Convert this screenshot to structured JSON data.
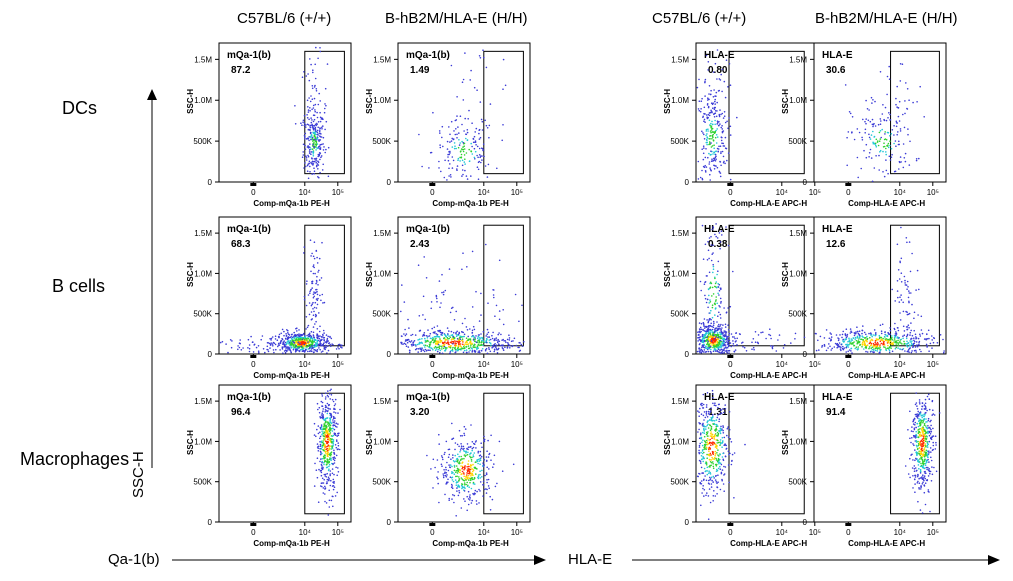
{
  "column_headers": [
    "C57BL/6 (+/+)",
    "B-hB2M/HLA-E (H/H)",
    "C57BL/6 (+/+)",
    "B-hB2M/HLA-E (H/H)"
  ],
  "row_labels": [
    "DCs",
    "B cells",
    "Macrophages"
  ],
  "axis_titles": {
    "y": "SSC-H",
    "x_left": "Qa-1(b)",
    "x_right": "HLA-E"
  },
  "colors": {
    "plot_border": "#000000",
    "density_low": "#3b3bd6",
    "density_mid": "#2fd12f",
    "density_high": "#ff2a00"
  },
  "chart_data": [
    {
      "type": "scatter",
      "row": "DCs",
      "column": "C57BL/6 (+/+)",
      "gate_label": "mQa-1(b)",
      "gate_value": "87.2",
      "xlabel": "Comp-mQa-1b PE-H",
      "ylabel": "SSC-H",
      "yticks": [
        "0",
        "500K",
        "1.0M",
        "1.5M"
      ],
      "xticks": [
        "0",
        "10^4",
        "10^5"
      ],
      "ylim": [
        0,
        1700000
      ],
      "population": "pos_cluster"
    },
    {
      "type": "scatter",
      "row": "DCs",
      "column": "B-hB2M/HLA-E (H/H)",
      "gate_label": "mQa-1(b)",
      "gate_value": "1.49",
      "xlabel": "Comp-mQa-1b PE-H",
      "ylabel": "SSC-H",
      "yticks": [
        "0",
        "500K",
        "1.0M",
        "1.5M"
      ],
      "xticks": [
        "0",
        "10^4",
        "10^5"
      ],
      "ylim": [
        0,
        1700000
      ],
      "population": "neg_sparse"
    },
    {
      "type": "scatter",
      "row": "DCs",
      "column": "C57BL/6 (+/+)",
      "gate_label": "HLA-E",
      "gate_value": "0.80",
      "xlabel": "Comp-HLA-E APC-H",
      "ylabel": "SSC-H",
      "yticks": [
        "0",
        "500K",
        "1.0M",
        "1.5M"
      ],
      "xticks": [
        "0",
        "10^4",
        "10^5"
      ],
      "ylim": [
        0,
        1700000
      ],
      "population": "neg_column"
    },
    {
      "type": "scatter",
      "row": "DCs",
      "column": "B-hB2M/HLA-E (H/H)",
      "gate_label": "HLA-E",
      "gate_value": "30.6",
      "xlabel": "Comp-HLA-E APC-H",
      "ylabel": "SSC-H",
      "yticks": [
        "0",
        "500K",
        "1.0M",
        "1.5M"
      ],
      "xticks": [
        "0",
        "10^4",
        "10^5"
      ],
      "ylim": [
        0,
        1700000
      ],
      "population": "mid_sparse"
    },
    {
      "type": "scatter",
      "row": "B cells",
      "column": "C57BL/6 (+/+)",
      "gate_label": "mQa-1(b)",
      "gate_value": "68.3",
      "xlabel": "Comp-mQa-1b PE-H",
      "ylabel": "SSC-H",
      "yticks": [
        "0",
        "500K",
        "1.0M",
        "1.5M"
      ],
      "xticks": [
        "0",
        "10^4",
        "10^5"
      ],
      "ylim": [
        0,
        1700000
      ],
      "population": "bcell_pos"
    },
    {
      "type": "scatter",
      "row": "B cells",
      "column": "B-hB2M/HLA-E (H/H)",
      "gate_label": "mQa-1(b)",
      "gate_value": "2.43",
      "xlabel": "Comp-mQa-1b PE-H",
      "ylabel": "SSC-H",
      "yticks": [
        "0",
        "500K",
        "1.0M",
        "1.5M"
      ],
      "xticks": [
        "0",
        "10^4",
        "10^5"
      ],
      "ylim": [
        0,
        1700000
      ],
      "population": "bcell_wide"
    },
    {
      "type": "scatter",
      "row": "B cells",
      "column": "C57BL/6 (+/+)",
      "gate_label": "HLA-E",
      "gate_value": "0.38",
      "xlabel": "Comp-HLA-E APC-H",
      "ylabel": "SSC-H",
      "yticks": [
        "0",
        "500K",
        "1.0M",
        "1.5M"
      ],
      "xticks": [
        "0",
        "10^4",
        "10^5"
      ],
      "ylim": [
        0,
        1700000
      ],
      "population": "bcell_neg"
    },
    {
      "type": "scatter",
      "row": "B cells",
      "column": "B-hB2M/HLA-E (H/H)",
      "gate_label": "HLA-E",
      "gate_value": "12.6",
      "xlabel": "Comp-HLA-E APC-H",
      "ylabel": "SSC-H",
      "yticks": [
        "0",
        "500K",
        "1.0M",
        "1.5M"
      ],
      "xticks": [
        "0",
        "10^4",
        "10^5"
      ],
      "ylim": [
        0,
        1700000
      ],
      "population": "bcell_mid"
    },
    {
      "type": "scatter",
      "row": "Macrophages",
      "column": "C57BL/6 (+/+)",
      "gate_label": "mQa-1(b)",
      "gate_value": "96.4",
      "xlabel": "Comp-mQa-1b PE-H",
      "ylabel": "SSC-H",
      "yticks": [
        "0",
        "500K",
        "1.0M",
        "1.5M"
      ],
      "xticks": [
        "0",
        "10^4",
        "10^5"
      ],
      "ylim": [
        0,
        1700000
      ],
      "population": "mac_pos"
    },
    {
      "type": "scatter",
      "row": "Macrophages",
      "column": "B-hB2M/HLA-E (H/H)",
      "gate_label": "mQa-1(b)",
      "gate_value": "3.20",
      "xlabel": "Comp-mQa-1b PE-H",
      "ylabel": "SSC-H",
      "yticks": [
        "0",
        "500K",
        "1.0M",
        "1.5M"
      ],
      "xticks": [
        "0",
        "10^4",
        "10^5"
      ],
      "ylim": [
        0,
        1700000
      ],
      "population": "mac_neg"
    },
    {
      "type": "scatter",
      "row": "Macrophages",
      "column": "C57BL/6 (+/+)",
      "gate_label": "HLA-E",
      "gate_value": "1.31",
      "xlabel": "Comp-HLA-E APC-H",
      "ylabel": "SSC-H",
      "yticks": [
        "0",
        "500K",
        "1.0M",
        "1.5M"
      ],
      "xticks": [
        "0",
        "10^4",
        "10^5"
      ],
      "ylim": [
        0,
        1700000
      ],
      "population": "mac_left"
    },
    {
      "type": "scatter",
      "row": "Macrophages",
      "column": "B-hB2M/HLA-E (H/H)",
      "gate_label": "HLA-E",
      "gate_value": "91.4",
      "xlabel": "Comp-HLA-E APC-H",
      "ylabel": "SSC-H",
      "yticks": [
        "0",
        "500K",
        "1.0M",
        "1.5M"
      ],
      "xticks": [
        "0",
        "10^4",
        "10^5"
      ],
      "ylim": [
        0,
        1700000
      ],
      "population": "mac_pos"
    }
  ]
}
